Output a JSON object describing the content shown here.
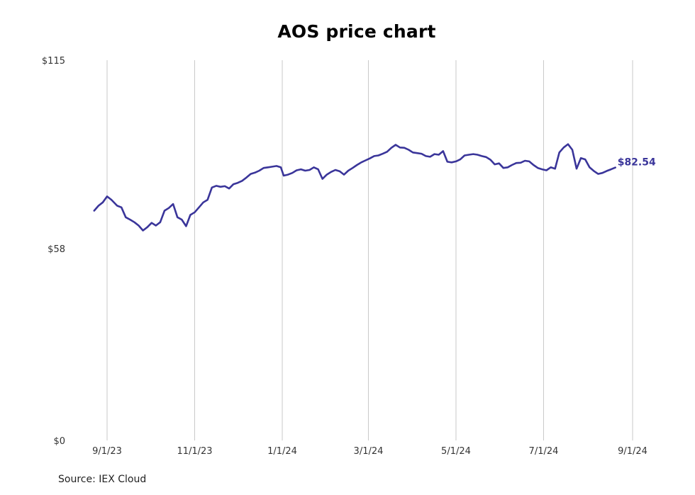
{
  "chart_data": {
    "type": "line",
    "title": "AOS price chart",
    "source": "Source: IEX Cloud",
    "line_color": "#3a359a",
    "grid": "vertical",
    "last_value_label": "$82.54",
    "y_ticks": [
      {
        "value": 0,
        "label": "$0"
      },
      {
        "value": 58,
        "label": "$58"
      },
      {
        "value": 115,
        "label": "$115"
      }
    ],
    "ylim": [
      0,
      115
    ],
    "x_ticks": [
      {
        "value": "2023-09-01",
        "label": "9/1/23"
      },
      {
        "value": "2023-11-01",
        "label": "11/1/23"
      },
      {
        "value": "2024-01-01",
        "label": "1/1/24"
      },
      {
        "value": "2024-03-01",
        "label": "3/1/24"
      },
      {
        "value": "2024-05-01",
        "label": "5/1/24"
      },
      {
        "value": "2024-07-01",
        "label": "7/1/24"
      },
      {
        "value": "2024-09-01",
        "label": "9/1/24"
      }
    ],
    "xlim": [
      "2023-08-23",
      "2024-09-01"
    ],
    "series": [
      {
        "points": [
          [
            "2023-08-23",
            69.5
          ],
          [
            "2023-08-26",
            71.0
          ],
          [
            "2023-08-29",
            72.0
          ],
          [
            "2023-09-01",
            73.8
          ],
          [
            "2023-09-04",
            72.8
          ],
          [
            "2023-09-08",
            71.0
          ],
          [
            "2023-09-11",
            70.5
          ],
          [
            "2023-09-14",
            67.5
          ],
          [
            "2023-09-17",
            66.8
          ],
          [
            "2023-09-20",
            66.0
          ],
          [
            "2023-09-23",
            65.0
          ],
          [
            "2023-09-26",
            63.5
          ],
          [
            "2023-09-29",
            64.5
          ],
          [
            "2023-10-02",
            65.8
          ],
          [
            "2023-10-05",
            65.0
          ],
          [
            "2023-10-08",
            66.0
          ],
          [
            "2023-10-11",
            69.5
          ],
          [
            "2023-10-14",
            70.3
          ],
          [
            "2023-10-17",
            71.5
          ],
          [
            "2023-10-20",
            67.5
          ],
          [
            "2023-10-23",
            66.8
          ],
          [
            "2023-10-26",
            64.8
          ],
          [
            "2023-10-29",
            68.2
          ],
          [
            "2023-11-01",
            69.0
          ],
          [
            "2023-11-04",
            70.5
          ],
          [
            "2023-11-07",
            72.0
          ],
          [
            "2023-11-10",
            72.8
          ],
          [
            "2023-11-13",
            76.5
          ],
          [
            "2023-11-16",
            77.0
          ],
          [
            "2023-11-19",
            76.7
          ],
          [
            "2023-11-22",
            76.9
          ],
          [
            "2023-11-25",
            76.2
          ],
          [
            "2023-11-28",
            77.5
          ],
          [
            "2023-12-01",
            77.9
          ],
          [
            "2023-12-04",
            78.5
          ],
          [
            "2023-12-07",
            79.5
          ],
          [
            "2023-12-10",
            80.6
          ],
          [
            "2023-12-13",
            81.0
          ],
          [
            "2023-12-16",
            81.6
          ],
          [
            "2023-12-19",
            82.4
          ],
          [
            "2023-12-22",
            82.6
          ],
          [
            "2023-12-25",
            82.8
          ],
          [
            "2023-12-28",
            83.0
          ],
          [
            "2023-12-31",
            82.6
          ],
          [
            "2024-01-02",
            80.1
          ],
          [
            "2024-01-05",
            80.4
          ],
          [
            "2024-01-08",
            80.9
          ],
          [
            "2024-01-11",
            81.7
          ],
          [
            "2024-01-14",
            82.0
          ],
          [
            "2024-01-17",
            81.6
          ],
          [
            "2024-01-20",
            81.8
          ],
          [
            "2024-01-23",
            82.6
          ],
          [
            "2024-01-26",
            82.0
          ],
          [
            "2024-01-29",
            79.1
          ],
          [
            "2024-02-01",
            80.4
          ],
          [
            "2024-02-04",
            81.2
          ],
          [
            "2024-02-07",
            81.8
          ],
          [
            "2024-02-10",
            81.4
          ],
          [
            "2024-02-13",
            80.4
          ],
          [
            "2024-02-16",
            81.6
          ],
          [
            "2024-02-19",
            82.4
          ],
          [
            "2024-02-22",
            83.3
          ],
          [
            "2024-02-25",
            84.1
          ],
          [
            "2024-02-28",
            84.7
          ],
          [
            "2024-03-02",
            85.3
          ],
          [
            "2024-03-05",
            86.0
          ],
          [
            "2024-03-08",
            86.2
          ],
          [
            "2024-03-11",
            86.7
          ],
          [
            "2024-03-14",
            87.3
          ],
          [
            "2024-03-17",
            88.5
          ],
          [
            "2024-03-20",
            89.4
          ],
          [
            "2024-03-23",
            88.6
          ],
          [
            "2024-03-26",
            88.5
          ],
          [
            "2024-03-29",
            87.9
          ],
          [
            "2024-04-01",
            87.1
          ],
          [
            "2024-04-04",
            86.9
          ],
          [
            "2024-04-07",
            86.7
          ],
          [
            "2024-04-10",
            86.0
          ],
          [
            "2024-04-13",
            85.8
          ],
          [
            "2024-04-16",
            86.6
          ],
          [
            "2024-04-19",
            86.4
          ],
          [
            "2024-04-22",
            87.5
          ],
          [
            "2024-04-25",
            84.3
          ],
          [
            "2024-04-28",
            84.1
          ],
          [
            "2024-05-01",
            84.4
          ],
          [
            "2024-05-04",
            85.0
          ],
          [
            "2024-05-07",
            86.2
          ],
          [
            "2024-05-10",
            86.4
          ],
          [
            "2024-05-13",
            86.6
          ],
          [
            "2024-05-16",
            86.4
          ],
          [
            "2024-05-19",
            86.0
          ],
          [
            "2024-05-22",
            85.7
          ],
          [
            "2024-05-25",
            84.9
          ],
          [
            "2024-05-28",
            83.5
          ],
          [
            "2024-05-31",
            83.8
          ],
          [
            "2024-06-03",
            82.4
          ],
          [
            "2024-06-06",
            82.6
          ],
          [
            "2024-06-09",
            83.3
          ],
          [
            "2024-06-12",
            83.9
          ],
          [
            "2024-06-15",
            84.0
          ],
          [
            "2024-06-18",
            84.6
          ],
          [
            "2024-06-21",
            84.4
          ],
          [
            "2024-06-24",
            83.3
          ],
          [
            "2024-06-27",
            82.4
          ],
          [
            "2024-06-30",
            82.0
          ],
          [
            "2024-07-03",
            81.7
          ],
          [
            "2024-07-06",
            82.6
          ],
          [
            "2024-07-09",
            82.2
          ],
          [
            "2024-07-12",
            87.1
          ],
          [
            "2024-07-15",
            88.6
          ],
          [
            "2024-07-18",
            89.6
          ],
          [
            "2024-07-21",
            87.9
          ],
          [
            "2024-07-24",
            82.2
          ],
          [
            "2024-07-27",
            85.4
          ],
          [
            "2024-07-30",
            85.0
          ],
          [
            "2024-08-02",
            82.6
          ],
          [
            "2024-08-05",
            81.5
          ],
          [
            "2024-08-08",
            80.6
          ],
          [
            "2024-08-11",
            80.9
          ],
          [
            "2024-08-14",
            81.5
          ],
          [
            "2024-08-17",
            82.0
          ],
          [
            "2024-08-20",
            82.54
          ]
        ]
      }
    ]
  }
}
